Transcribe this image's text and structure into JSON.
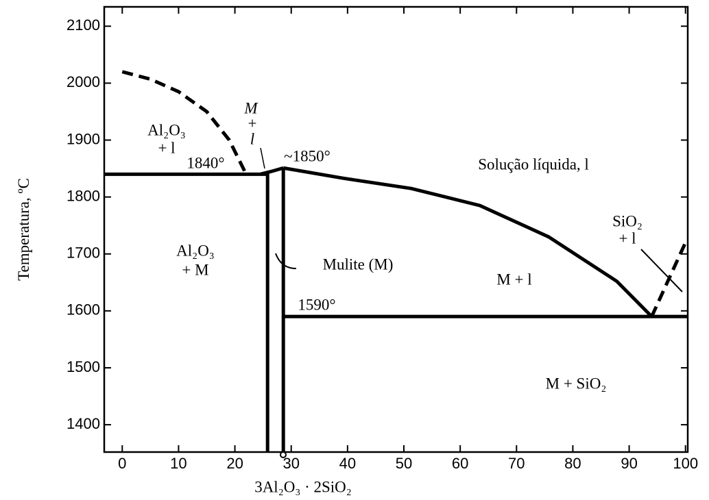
{
  "chart_data": {
    "type": "phase-diagram",
    "y_label": "Temperatura, ºC",
    "xlim": [
      -3.2,
      100.4
    ],
    "ylim": [
      1352,
      2134
    ],
    "xticks": [
      0,
      10,
      20,
      30,
      40,
      50,
      60,
      70,
      80,
      90,
      100
    ],
    "yticks": [
      1400,
      1500,
      1600,
      1700,
      1800,
      1900,
      2000,
      2100
    ],
    "color": "#000000",
    "series": [
      {
        "style": "dashed",
        "x": [
          0,
          5,
          10,
          15,
          19,
          22
        ],
        "y": [
          2020,
          2007,
          1985,
          1950,
          1900,
          1840
        ]
      },
      {
        "style": "solid",
        "x": [
          -3.2,
          25.8
        ],
        "y": [
          1840,
          1840
        ]
      },
      {
        "style": "solid",
        "x": [
          24.5,
          26.5,
          28.6
        ],
        "y": [
          1840,
          1845,
          1851
        ]
      },
      {
        "style": "solid",
        "x": [
          28.6,
          39.2,
          51.3,
          63.5,
          75.7,
          87.8,
          94
        ],
        "y": [
          1851,
          1833,
          1815,
          1785,
          1730,
          1652,
          1590
        ]
      },
      {
        "style": "dashed",
        "x": [
          94,
          97,
          100
        ],
        "y": [
          1590,
          1655,
          1720
        ]
      },
      {
        "style": "solid",
        "x": [
          28.6,
          100.4
        ],
        "y": [
          1590,
          1590
        ]
      },
      {
        "style": "solid",
        "x": [
          25.8,
          25.8
        ],
        "y": [
          1842,
          1352
        ]
      },
      {
        "style": "solid",
        "x": [
          28.6,
          28.6
        ],
        "y": [
          1851,
          1352
        ]
      }
    ],
    "annotations": [
      "Al₂O₃",
      "+ l",
      "M",
      "+",
      "l",
      "1840°",
      "~1850°",
      "Solução líquida, l",
      "SiO₂",
      "+ l",
      "Al₂O₃",
      "+ M",
      "Mulite (M)",
      "M + l",
      "1590°",
      "M + SiO₂",
      "3Al₂O₃ · 2SiO₂"
    ]
  }
}
